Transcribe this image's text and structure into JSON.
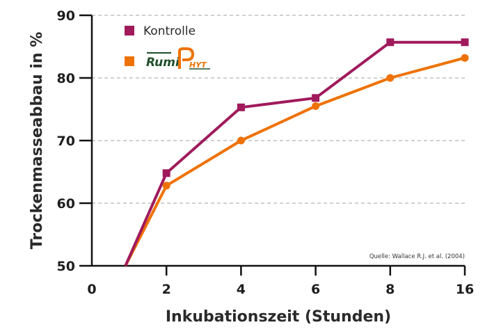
{
  "chart_data": {
    "type": "line",
    "xlabel": "Inkubationszeit (Stunden)",
    "ylabel": "Trockenmasseabbau in %",
    "categories": [
      "0",
      "2",
      "4",
      "6",
      "8",
      "16"
    ],
    "ylim": [
      50,
      90
    ],
    "yticks": [
      "50",
      "60",
      "70",
      "80",
      "90"
    ],
    "grid": "horizontal dashed",
    "legend_position": "top-left",
    "source": "Quelle: Wallace R.J. et al. (2004)",
    "series": [
      {
        "name": "Kontrolle",
        "marker": "square",
        "color": "#a01a5c",
        "x_index": [
          0.45,
          1,
          2,
          3,
          4,
          5
        ],
        "values": [
          50,
          64.8,
          75.3,
          76.8,
          85.7,
          85.7
        ]
      },
      {
        "name": "RumiPHYT",
        "marker": "circle",
        "color": "#ee7203",
        "x_index": [
          0.45,
          1,
          2,
          3,
          4,
          5
        ],
        "values": [
          50,
          62.8,
          70,
          75.5,
          80,
          83.2
        ]
      }
    ],
    "logo": {
      "part1": "Rumi",
      "part2": "P",
      "part3": "HYT"
    }
  }
}
